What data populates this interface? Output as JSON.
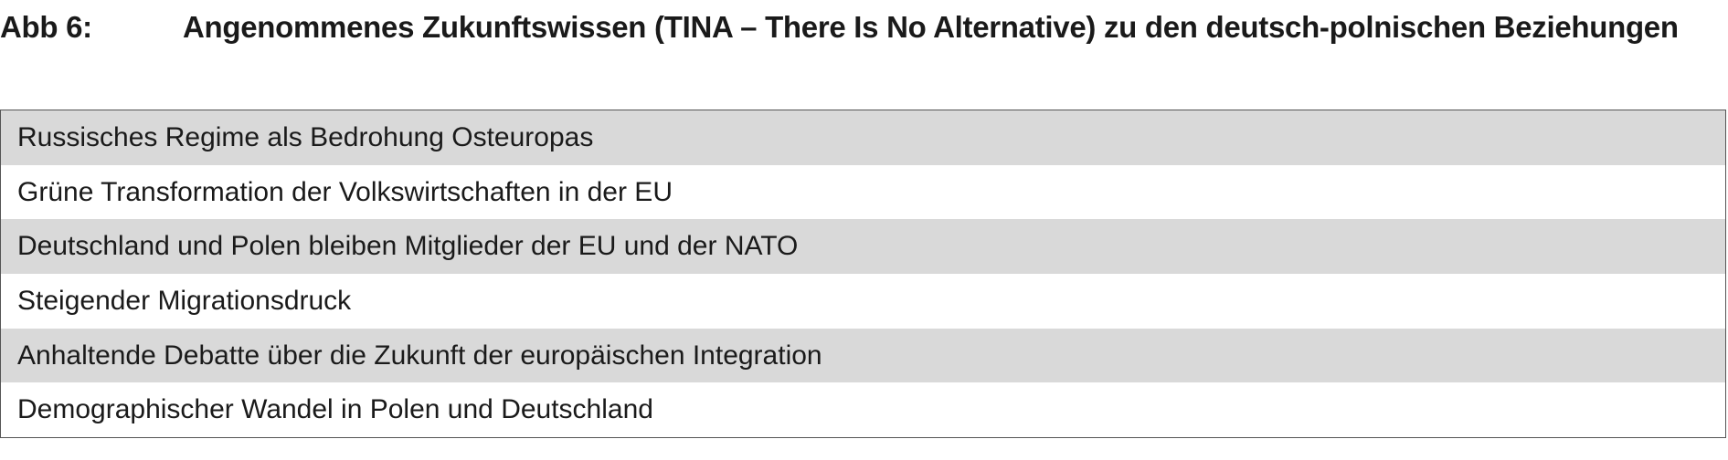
{
  "figure": {
    "label": "Abb 6:",
    "title": "Angenommenes Zukunftswissen (TINA – There Is No Alternative) zu den deutsch-polnischen Beziehungen"
  },
  "colors": {
    "row_shaded": "#d9d9d9",
    "row_plain": "#ffffff",
    "border": "#555555"
  },
  "items": [
    "Russisches Regime als Bedrohung Osteuropas",
    "Grüne Transformation der Volkswirtschaften in der EU",
    "Deutschland und Polen bleiben Mitglieder der EU und der NATO",
    "Steigender Migrationsdruck",
    "Anhaltende Debatte über die Zukunft der europäischen Integration",
    "Demographischer Wandel in Polen und Deutschland"
  ]
}
